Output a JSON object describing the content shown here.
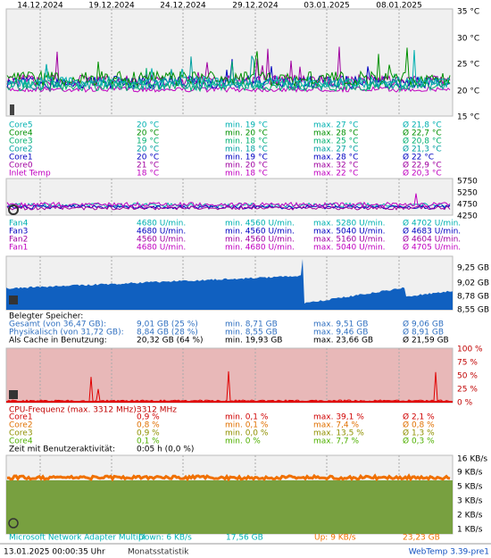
{
  "dates": [
    "14.12.2024",
    "19.12.2024",
    "24.12.2024",
    "29.12.2024",
    "03.01.2025",
    "08.01.2025"
  ],
  "temperature": {
    "axis": [
      "35 °C",
      "30 °C",
      "25 °C",
      "20 °C",
      "15 °C"
    ],
    "rows": [
      [
        "Core5",
        "20 °C",
        "min. 19 °C",
        "max. 27 °C",
        "Ø 21,8 °C"
      ],
      [
        "Core4",
        "20 °C",
        "min. 20 °C",
        "max. 28 °C",
        "Ø 22,7 °C"
      ],
      [
        "Core3",
        "19 °C",
        "min. 18 °C",
        "max. 25 °C",
        "Ø 20,8 °C"
      ],
      [
        "Core2",
        "20 °C",
        "min. 18 °C",
        "max. 27 °C",
        "Ø 21,3 °C"
      ],
      [
        "Core1",
        "20 °C",
        "min. 19 °C",
        "max. 28 °C",
        "Ø 22 °C"
      ],
      [
        "Core0",
        "21 °C",
        "min. 20 °C",
        "max. 32 °C",
        "Ø 22,9 °C"
      ],
      [
        "Inlet Temp",
        "18 °C",
        "min. 18 °C",
        "max. 22 °C",
        "Ø 20,3 °C"
      ]
    ]
  },
  "fans": {
    "axis": [
      "5750",
      "5250",
      "4750",
      "4250"
    ],
    "rows": [
      [
        "Fan4",
        "4680 U/min.",
        "min. 4560 U/min.",
        "max. 5280 U/min.",
        "Ø 4702 U/min."
      ],
      [
        "Fan3",
        "4680 U/min.",
        "min. 4560 U/min.",
        "max. 5040 U/min.",
        "Ø 4683 U/min."
      ],
      [
        "Fan2",
        "4560 U/min.",
        "min. 4560 U/min.",
        "max. 5160 U/min.",
        "Ø 4604 U/min."
      ],
      [
        "Fan1",
        "4680 U/min.",
        "min. 4680 U/min.",
        "max. 5040 U/min.",
        "Ø 4705 U/min."
      ]
    ]
  },
  "memory": {
    "axis": [
      "9,25 GB",
      "9,02 GB",
      "8,78 GB",
      "8,55 GB"
    ],
    "header": "Belegter Speicher:",
    "rows": [
      [
        "Gesamt (von 36,47 GB):",
        "9,01 GB (25 %)",
        "min. 8,71 GB",
        "max. 9,51 GB",
        "Ø 9,06 GB"
      ],
      [
        "Physikalisch (von 31,72 GB):",
        "8,84 GB (28 %)",
        "min. 8,55 GB",
        "max. 9,46 GB",
        "Ø 8,91 GB"
      ],
      [
        "Als Cache in Benutzung:",
        "20,32 GB (64 %)",
        "min. 19,93 GB",
        "max. 23,66 GB",
        "Ø 21,59 GB"
      ]
    ]
  },
  "cpu": {
    "axis": [
      "100 %",
      "75 %",
      "50 %",
      "25 %",
      "0 %"
    ],
    "frequency": [
      "CPU-Frequenz (max. 3312 MHz):",
      "3312 MHz"
    ],
    "rows": [
      [
        "Core1",
        "0,9 %",
        "min. 0,1 %",
        "max. 39,1 %",
        "Ø 2,1 %"
      ],
      [
        "Core2",
        "0,8 %",
        "min. 0,1 %",
        "max. 7,4 %",
        "Ø 0,8 %"
      ],
      [
        "Core3",
        "0,9 %",
        "min. 0,0 %",
        "max. 13,5 %",
        "Ø 1,3 %"
      ],
      [
        "Core4",
        "0,1 %",
        "min. 0 %",
        "max. 7,7 %",
        "Ø 0,3 %"
      ]
    ],
    "activity": [
      "Zeit mit Benutzeraktivität:",
      "0:05 h (0,0 %)"
    ]
  },
  "network": {
    "axis": [
      "16 KB/s",
      "9 KB/s",
      "5 KB/s",
      "3 KB/s",
      "2 KB/s",
      "1 KB/s"
    ],
    "row": [
      "Microsoft Network Adapter Multipl",
      "Down: 6 KB/s",
      "17,56 GB",
      "Up: 9 KB/s",
      "23,23 GB"
    ]
  },
  "footer": {
    "timestamp": "13.01.2025 00:00:35 Uhr",
    "link": "Monatsstatistik",
    "version": "WebTemp 3.39-pre1"
  }
}
